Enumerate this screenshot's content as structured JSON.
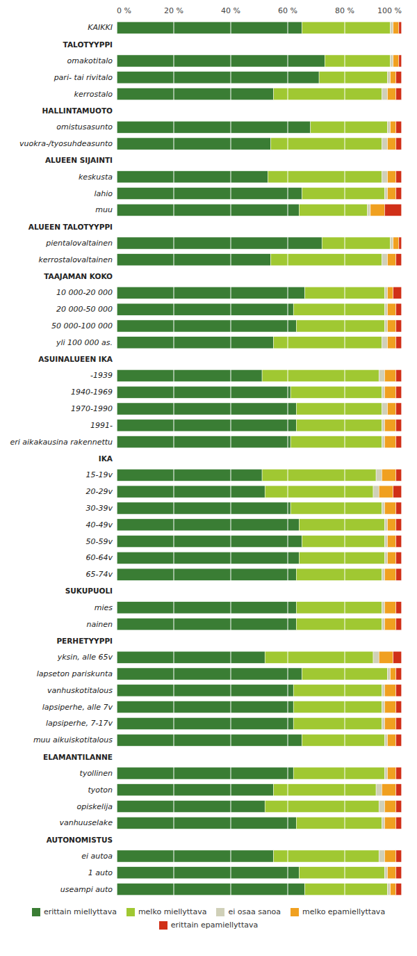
{
  "chart_data": {
    "type": "bar",
    "orientation": "horizontal",
    "stacked": true,
    "grid": true,
    "legend": "bottom",
    "categories": [
      "KAIKKI",
      "TALOTYYPPI",
      "omakotitalo",
      "pari- tai rivitalo",
      "kerrostalo",
      "HALLINTAMUOTO",
      "omistusasunto",
      "vuokra-/tyosuhdeasunto",
      "ALUEEN SIJAINTI",
      "keskusta",
      "lahio",
      "muu",
      "ALUEEN TALOTYYPPI",
      "pientalovaltainen",
      "kerrostalovaltainen",
      "TAAJAMAN KOKO",
      "10 000-20 000",
      "20 000-50 000",
      "50 000-100 000",
      "yli 100 000 as.",
      "ASUINALUEEN IKA",
      "-1939",
      "1940-1969",
      "1970-1990",
      "1991-",
      "eri aikakausina rakennettu",
      "IKA",
      "15-19v",
      "20-29v",
      "30-39v",
      "40-49v",
      "50-59v",
      "60-64v",
      "65-74v",
      "SUKUPUOLI",
      "mies",
      "nainen",
      "PERHETYYPPI",
      "yksin, alle 65v",
      "lapseton pariskunta",
      "vanhuskotitalous",
      "lapsiperhe, alle 7v",
      "lapsiperhe, 7-17v",
      "muu aikuiskotitalous",
      "ELAMANTILANNE",
      "tyollinen",
      "tyoton",
      "opiskelija",
      "vanhuuselake",
      "AUTONOMISTUS",
      "ei autoa",
      "1 auto",
      "useampi auto"
    ],
    "series": [
      {
        "name": "erittain miellyttava",
        "color": "#3a7d34",
        "values": [
          65,
          0,
          73,
          71,
          55,
          0,
          68,
          54,
          0,
          53,
          65,
          64,
          0,
          72,
          54,
          0,
          66,
          62,
          63,
          55,
          0,
          51,
          61,
          63,
          63,
          61,
          0,
          51,
          52,
          61,
          64,
          65,
          64,
          63,
          0,
          63,
          63,
          0,
          52,
          65,
          62,
          62,
          62,
          65,
          0,
          62,
          55,
          52,
          63,
          0,
          55,
          64,
          66
        ]
      },
      {
        "name": "melko miellyttava",
        "color": "#a0c832",
        "values": [
          31,
          0,
          23,
          24,
          38,
          0,
          27,
          39,
          0,
          40,
          29,
          24,
          0,
          24,
          39,
          0,
          28,
          32,
          31,
          38,
          0,
          41,
          32,
          30,
          30,
          32,
          0,
          40,
          38,
          32,
          30,
          29,
          30,
          30,
          0,
          30,
          30,
          0,
          38,
          30,
          31,
          31,
          31,
          29,
          0,
          32,
          36,
          40,
          30,
          0,
          37,
          30,
          29
        ]
      },
      {
        "name": "ei osaa sanoa",
        "color": "#d0d0b8",
        "values": [
          1,
          0,
          1,
          1,
          2,
          0,
          1,
          2,
          0,
          2,
          1,
          1,
          0,
          1,
          2,
          0,
          1,
          1,
          1,
          2,
          0,
          2,
          1,
          2,
          1,
          1,
          0,
          2,
          2,
          1,
          1,
          1,
          1,
          1,
          0,
          1,
          1,
          0,
          2,
          1,
          1,
          1,
          1,
          1,
          0,
          1,
          2,
          2,
          1,
          0,
          2,
          1,
          1
        ]
      },
      {
        "name": "melko epamiellyttava",
        "color": "#f0a020",
        "values": [
          2,
          0,
          2,
          2,
          3,
          0,
          2,
          3,
          0,
          3,
          3,
          5,
          0,
          2,
          3,
          0,
          2,
          3,
          3,
          3,
          0,
          4,
          4,
          3,
          4,
          4,
          0,
          5,
          5,
          4,
          3,
          3,
          3,
          4,
          0,
          4,
          4,
          0,
          5,
          2,
          4,
          4,
          4,
          3,
          0,
          3,
          5,
          4,
          4,
          0,
          4,
          3,
          2
        ]
      },
      {
        "name": "erittain epamiellyttava",
        "color": "#d03018",
        "values": [
          1,
          0,
          1,
          2,
          2,
          0,
          2,
          2,
          0,
          2,
          2,
          6,
          0,
          1,
          2,
          0,
          3,
          2,
          2,
          2,
          0,
          2,
          2,
          2,
          2,
          2,
          0,
          2,
          3,
          2,
          2,
          2,
          2,
          2,
          0,
          2,
          2,
          0,
          3,
          2,
          2,
          2,
          2,
          2,
          0,
          2,
          2,
          2,
          2,
          0,
          2,
          2,
          2
        ]
      }
    ],
    "xlim": [
      0,
      100
    ],
    "xticks": [
      {
        "value": 0,
        "label": "0 %"
      },
      {
        "value": 20,
        "label": "20 %"
      },
      {
        "value": 40,
        "label": "40 %"
      },
      {
        "value": 60,
        "label": "60 %"
      },
      {
        "value": 80,
        "label": "80 %"
      },
      {
        "value": 100,
        "label": "100 %"
      }
    ]
  }
}
